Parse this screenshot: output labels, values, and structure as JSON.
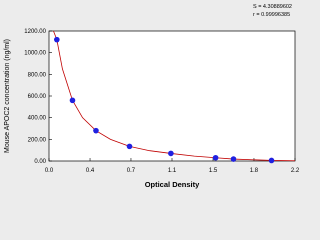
{
  "chart_data": {
    "type": "scatter",
    "x_label": "Optical Density",
    "y_label": "Mouse APOC2 concentration (ng/ml)",
    "annotations": [
      "S = 4.30889602",
      "r = 0.99996385"
    ],
    "xlim": [
      0,
      2.2
    ],
    "ylim": [
      0,
      1200
    ],
    "xticks": [
      {
        "value": 0,
        "label": "0.0"
      },
      {
        "value": 0.367,
        "label": "0.4"
      },
      {
        "value": 0.733,
        "label": "0.7"
      },
      {
        "value": 1.1,
        "label": "1.1"
      },
      {
        "value": 1.467,
        "label": "1.5"
      },
      {
        "value": 1.833,
        "label": "1.8"
      },
      {
        "value": 2.2,
        "label": "2.2"
      }
    ],
    "yticks": [
      {
        "value": 0,
        "label": "0.00"
      },
      {
        "value": 200,
        "label": "200.00"
      },
      {
        "value": 400,
        "label": "400.00"
      },
      {
        "value": 600,
        "label": "600.00"
      },
      {
        "value": 800,
        "label": "800.00"
      },
      {
        "value": 1000,
        "label": "1000.00"
      },
      {
        "value": 1200,
        "label": "1200.00"
      }
    ],
    "series": [
      {
        "style": "line",
        "color": "#c00000",
        "x": [
          0.04,
          0.07,
          0.12,
          0.21,
          0.3,
          0.42,
          0.55,
          0.72,
          0.9,
          1.09,
          1.3,
          1.49,
          1.65,
          1.99,
          2.2
        ],
        "values": [
          1200,
          1120,
          850,
          560,
          400,
          280,
          200,
          135,
          95,
          70,
          45,
          30,
          18,
          5,
          2
        ]
      },
      {
        "style": "marker",
        "color": "#2020e0",
        "x": [
          0.07,
          0.21,
          0.42,
          0.72,
          1.09,
          1.49,
          1.65,
          1.99
        ],
        "values": [
          1120,
          560,
          280,
          135,
          70,
          30,
          18,
          5
        ]
      }
    ]
  }
}
